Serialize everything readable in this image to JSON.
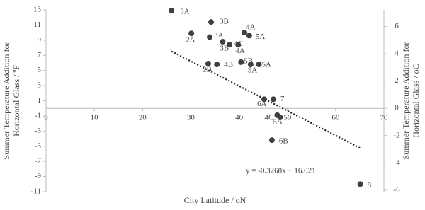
{
  "chart_data": {
    "type": "scatter",
    "xlabel": "City Latitude / oN",
    "ylabel": [
      "Summer Temperature Addition for",
      "Horizontal Glass / ºF"
    ],
    "y2label": [
      "Summer Temperature Addition for",
      "Horizontal Glass / oC"
    ],
    "x": [
      26.0,
      34.2,
      30.1,
      33.9,
      41.1,
      42.1,
      36.6,
      38.0,
      39.8,
      33.6,
      35.4,
      40.4,
      42.4,
      44.1,
      45.2,
      47.1,
      47.9,
      48.5,
      46.8,
      65.1
    ],
    "values": [
      12.9,
      11.4,
      9.9,
      9.4,
      10.0,
      9.6,
      8.8,
      8.4,
      8.4,
      5.9,
      5.8,
      6.1,
      5.8,
      5.8,
      1.2,
      1.2,
      -0.9,
      -1.2,
      -4.2,
      -10.0
    ],
    "point_labels": [
      "3A",
      "3B",
      "2A",
      "3A",
      "4A",
      "5A",
      "3B",
      "4C",
      "4A",
      "2B",
      "4B",
      "5B",
      "5A",
      "5A",
      "6A",
      "7",
      "4C",
      "5A",
      "6B",
      "8"
    ],
    "color": "#404040",
    "trendline": {
      "label": "y = -0.3268x + 16.021",
      "slope": -0.3268,
      "intercept": 16.021
    },
    "xlim": [
      0,
      70
    ],
    "xticks": [
      0,
      10,
      20,
      30,
      40,
      50,
      60,
      70
    ],
    "ylim": [
      -11,
      13
    ],
    "yticks": [
      13,
      11,
      9,
      7,
      5,
      3,
      1,
      -1,
      -3,
      -5,
      -7,
      -9,
      -11
    ],
    "y2lim": [
      -6.111,
      7.222
    ],
    "y2ticks": [
      6,
      4,
      2,
      0,
      -2,
      -4,
      -6
    ]
  }
}
